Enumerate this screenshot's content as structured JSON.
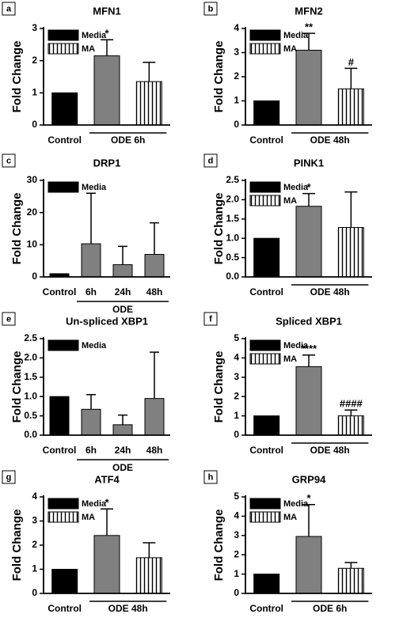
{
  "chart_data": [
    {
      "type": "bar",
      "panel": "a",
      "title": "MFN1",
      "ylabel": "Fold Change",
      "categories": [
        "Control",
        null,
        null
      ],
      "values": [
        1,
        2.15,
        1.35
      ],
      "errors": [
        null,
        0.5,
        0.6
      ],
      "bar_fills": [
        "#000000",
        "#808080",
        "stripes"
      ],
      "legend": [
        {
          "name": "Media",
          "fill": "#000000"
        },
        {
          "name": "MA",
          "fill": "stripes"
        }
      ],
      "annotations": [
        {
          "text": "*",
          "index": 1
        }
      ],
      "group": {
        "label": "ODE 6h",
        "from": 1,
        "to": 2
      },
      "ylim": [
        0,
        3
      ],
      "yticks": [
        0,
        1,
        2,
        3
      ]
    },
    {
      "type": "bar",
      "panel": "b",
      "title": "MFN2",
      "ylabel": "Fold Change",
      "categories": [
        "Control",
        null,
        null
      ],
      "values": [
        1,
        3.1,
        1.5
      ],
      "errors": [
        null,
        0.7,
        0.85
      ],
      "bar_fills": [
        "#000000",
        "#808080",
        "stripes"
      ],
      "legend": [
        {
          "name": "Media",
          "fill": "#000000"
        },
        {
          "name": "MA",
          "fill": "stripes"
        }
      ],
      "annotations": [
        {
          "text": "**",
          "index": 1
        },
        {
          "text": "#",
          "index": 2
        }
      ],
      "group": {
        "label": "ODE 48h",
        "from": 1,
        "to": 2
      },
      "ylim": [
        0,
        4
      ],
      "yticks": [
        0,
        1,
        2,
        3,
        4
      ]
    },
    {
      "type": "bar",
      "panel": "c",
      "title": "DRP1",
      "ylabel": "Fold Change",
      "categories": [
        "Control",
        "6h",
        "24h",
        "48h"
      ],
      "values": [
        1,
        10.3,
        3.8,
        7
      ],
      "errors": [
        null,
        15.7,
        5.7,
        9.8
      ],
      "bar_fills": [
        "#000000",
        "#808080",
        "#808080",
        "#808080"
      ],
      "legend": [
        {
          "name": "Media",
          "fill": "#000000"
        }
      ],
      "annotations": [],
      "group": {
        "label": "ODE",
        "from": 1,
        "to": 3
      },
      "ylim": [
        0,
        30
      ],
      "yticks": [
        0,
        10,
        20,
        30
      ]
    },
    {
      "type": "bar",
      "panel": "d",
      "title": "PINK1",
      "ylabel": "Fold Change",
      "categories": [
        "Control",
        null,
        null
      ],
      "values": [
        1,
        1.83,
        1.28
      ],
      "errors": [
        null,
        0.33,
        0.92
      ],
      "bar_fills": [
        "#000000",
        "#808080",
        "stripes"
      ],
      "legend": [
        {
          "name": "Media",
          "fill": "#000000"
        },
        {
          "name": "MA",
          "fill": "stripes"
        }
      ],
      "annotations": [
        {
          "text": "*",
          "index": 1
        }
      ],
      "group": {
        "label": "ODE 48h",
        "from": 1,
        "to": 2
      },
      "ylim": [
        0,
        2.5
      ],
      "yticks": [
        {
          "value": 0,
          "label": "0.0"
        },
        0.5,
        {
          "value": 1,
          "label": "1.0"
        },
        1.5,
        {
          "value": 2,
          "label": "2.0"
        },
        2.5
      ]
    },
    {
      "type": "bar",
      "panel": "e",
      "title": "Un-spliced XBP1",
      "ylabel": "Fold Change",
      "categories": [
        "Control",
        "6h",
        "24h",
        "48h"
      ],
      "values": [
        1,
        0.67,
        0.27,
        0.95
      ],
      "errors": [
        null,
        0.38,
        0.25,
        1.2
      ],
      "bar_fills": [
        "#000000",
        "#808080",
        "#808080",
        "#808080"
      ],
      "legend": [
        {
          "name": "Media",
          "fill": "#000000"
        }
      ],
      "annotations": [],
      "group": {
        "label": "ODE",
        "from": 1,
        "to": 3
      },
      "ylim": [
        0,
        2.5
      ],
      "yticks": [
        {
          "value": 0,
          "label": "0.0"
        },
        0.5,
        {
          "value": 1,
          "label": "1.0"
        },
        1.5,
        {
          "value": 2,
          "label": "2.0"
        },
        2.5
      ]
    },
    {
      "type": "bar",
      "panel": "f",
      "title": "Spliced XBP1",
      "ylabel": "Fold Change",
      "categories": [
        "Control",
        null,
        null
      ],
      "values": [
        1,
        3.55,
        1.0
      ],
      "errors": [
        null,
        0.6,
        0.3
      ],
      "bar_fills": [
        "#000000",
        "#808080",
        "stripes"
      ],
      "legend": [
        {
          "name": "Media",
          "fill": "#000000"
        },
        {
          "name": "MA",
          "fill": "stripes"
        }
      ],
      "annotations": [
        {
          "text": "****",
          "index": 1
        },
        {
          "text": "####",
          "index": 2
        }
      ],
      "group": {
        "label": "ODE 48h",
        "from": 1,
        "to": 2
      },
      "ylim": [
        0,
        5
      ],
      "yticks": [
        0,
        1,
        2,
        3,
        4,
        5
      ]
    },
    {
      "type": "bar",
      "panel": "g",
      "title": "ATF4",
      "ylabel": "Fold Change",
      "categories": [
        "Control",
        null,
        null
      ],
      "values": [
        1,
        2.4,
        1.48
      ],
      "errors": [
        null,
        1.1,
        0.62
      ],
      "bar_fills": [
        "#000000",
        "#808080",
        "stripes"
      ],
      "legend": [
        {
          "name": "Media",
          "fill": "#000000"
        },
        {
          "name": "MA",
          "fill": "stripes"
        }
      ],
      "annotations": [
        {
          "text": "*",
          "index": 1
        }
      ],
      "group": {
        "label": "ODE 48h",
        "from": 1,
        "to": 2
      },
      "ylim": [
        0,
        4
      ],
      "yticks": [
        0,
        1,
        2,
        3,
        4
      ]
    },
    {
      "type": "bar",
      "panel": "h",
      "title": "GRP94",
      "ylabel": "Fold Change",
      "categories": [
        "Control",
        null,
        null
      ],
      "values": [
        1,
        2.95,
        1.3
      ],
      "errors": [
        null,
        1.65,
        0.3
      ],
      "bar_fills": [
        "#000000",
        "#808080",
        "stripes"
      ],
      "legend": [
        {
          "name": "Media",
          "fill": "#000000"
        },
        {
          "name": "MA",
          "fill": "stripes"
        }
      ],
      "annotations": [
        {
          "text": "*",
          "index": 1
        }
      ],
      "group": {
        "label": "ODE 6h",
        "from": 1,
        "to": 2
      },
      "ylim": [
        0,
        5
      ],
      "yticks": [
        0,
        1,
        2,
        3,
        4,
        5
      ]
    }
  ]
}
